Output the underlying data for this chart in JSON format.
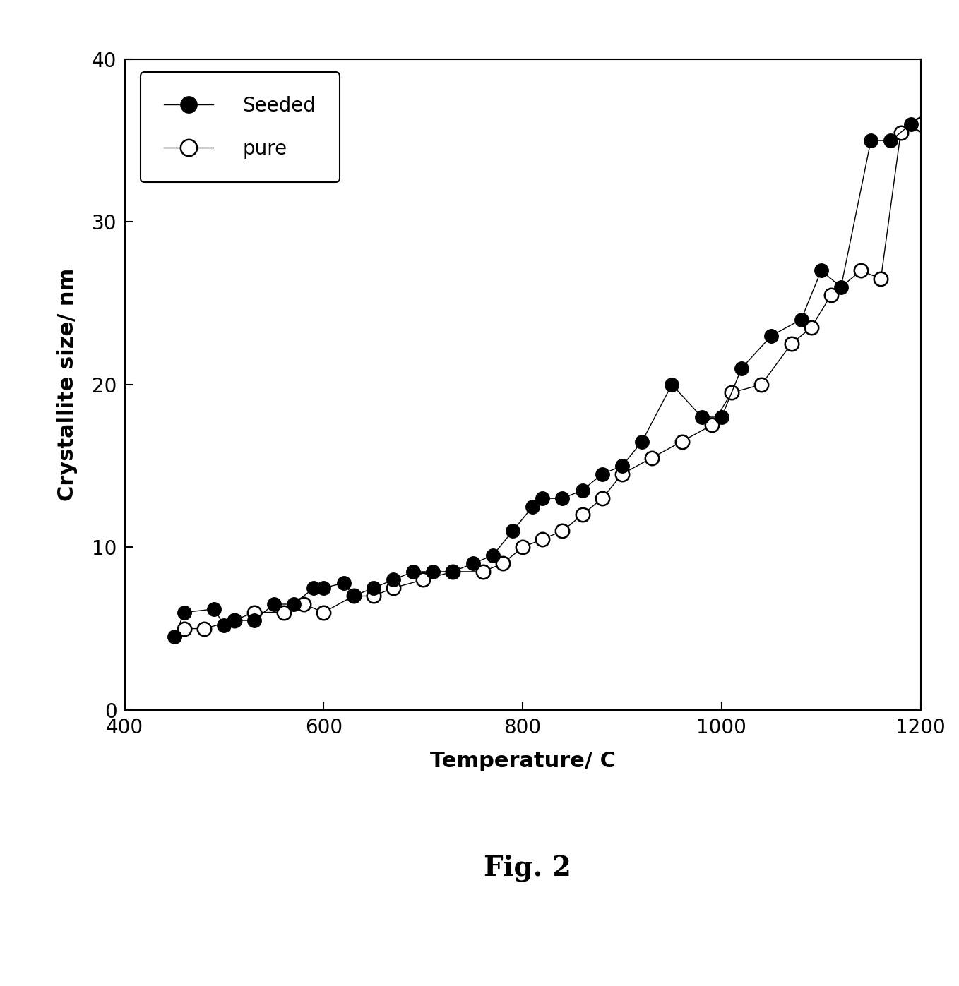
{
  "xlabel": "Temperature/ C",
  "ylabel": "Crystallite size/ nm",
  "xlim": [
    400,
    1200
  ],
  "ylim": [
    0,
    40
  ],
  "xticks": [
    400,
    600,
    800,
    1000,
    1200
  ],
  "yticks": [
    0,
    10,
    20,
    30,
    40
  ],
  "seeded_x": [
    450,
    460,
    490,
    500,
    510,
    530,
    550,
    570,
    590,
    600,
    620,
    630,
    650,
    670,
    690,
    710,
    730,
    750,
    770,
    790,
    810,
    820,
    840,
    860,
    880,
    900,
    920,
    950,
    980,
    1000,
    1020,
    1050,
    1080,
    1100,
    1120,
    1150,
    1170,
    1190
  ],
  "seeded_y": [
    4.5,
    6.0,
    6.2,
    5.2,
    5.5,
    5.5,
    6.5,
    6.5,
    7.5,
    7.5,
    7.8,
    7.0,
    7.5,
    8.0,
    8.5,
    8.5,
    8.5,
    9.0,
    9.5,
    11.0,
    12.5,
    13.0,
    13.0,
    13.5,
    14.5,
    15.0,
    16.5,
    20.0,
    18.0,
    18.0,
    21.0,
    23.0,
    24.0,
    27.0,
    26.0,
    35.0,
    35.0,
    36.0
  ],
  "pure_x": [
    460,
    480,
    510,
    530,
    560,
    580,
    600,
    630,
    650,
    670,
    700,
    730,
    760,
    780,
    800,
    820,
    840,
    860,
    880,
    900,
    930,
    960,
    990,
    1010,
    1040,
    1070,
    1090,
    1110,
    1140,
    1160,
    1180,
    1200
  ],
  "pure_y": [
    5.0,
    5.0,
    5.5,
    6.0,
    6.0,
    6.5,
    6.0,
    7.0,
    7.0,
    7.5,
    8.0,
    8.5,
    8.5,
    9.0,
    10.0,
    10.5,
    11.0,
    12.0,
    13.0,
    14.5,
    15.5,
    16.5,
    17.5,
    19.5,
    20.0,
    22.5,
    23.5,
    25.5,
    27.0,
    26.5,
    35.5,
    36.0
  ],
  "background_color": "#ffffff",
  "line_color": "#000000",
  "marker_size": 14,
  "line_width": 1.0,
  "legend_labels": [
    "Seeded",
    "pure"
  ],
  "fig_label": "Fig. 2",
  "fig_label_fontsize": 28,
  "axis_label_fontsize": 22,
  "tick_label_fontsize": 20,
  "legend_fontsize": 20
}
